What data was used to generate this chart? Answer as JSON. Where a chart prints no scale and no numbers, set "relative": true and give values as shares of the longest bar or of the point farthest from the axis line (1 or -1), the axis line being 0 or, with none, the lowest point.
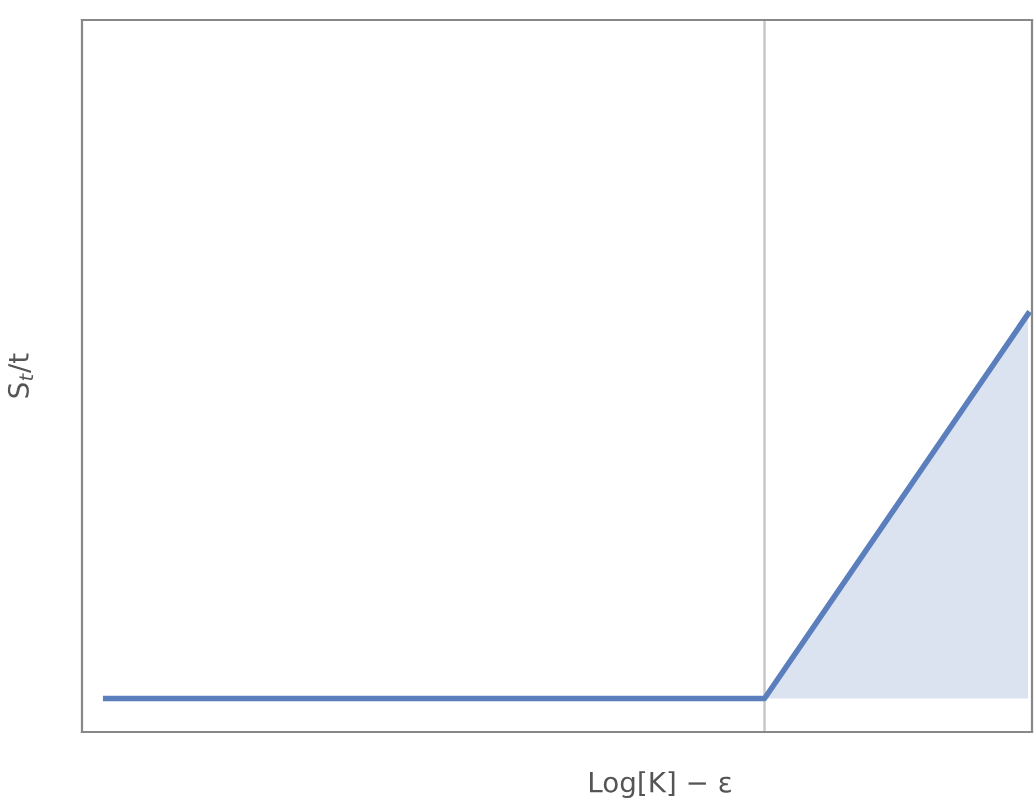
{
  "chart_data": {
    "type": "area",
    "relative": true,
    "xlabel": "Log[K] − ε",
    "ylabel": "S$_{t}$/t",
    "categories": [
      null,
      null,
      null,
      null,
      null,
      null,
      null,
      null
    ],
    "series": [
      {
        "color": "#5b7fbd",
        "values": [
          0.08,
          0.08,
          0.08,
          0.08,
          0.08,
          0.08,
          0.54,
          1
        ]
      }
    ],
    "grid": false,
    "legend": false,
    "tick_labels": false
  }
}
